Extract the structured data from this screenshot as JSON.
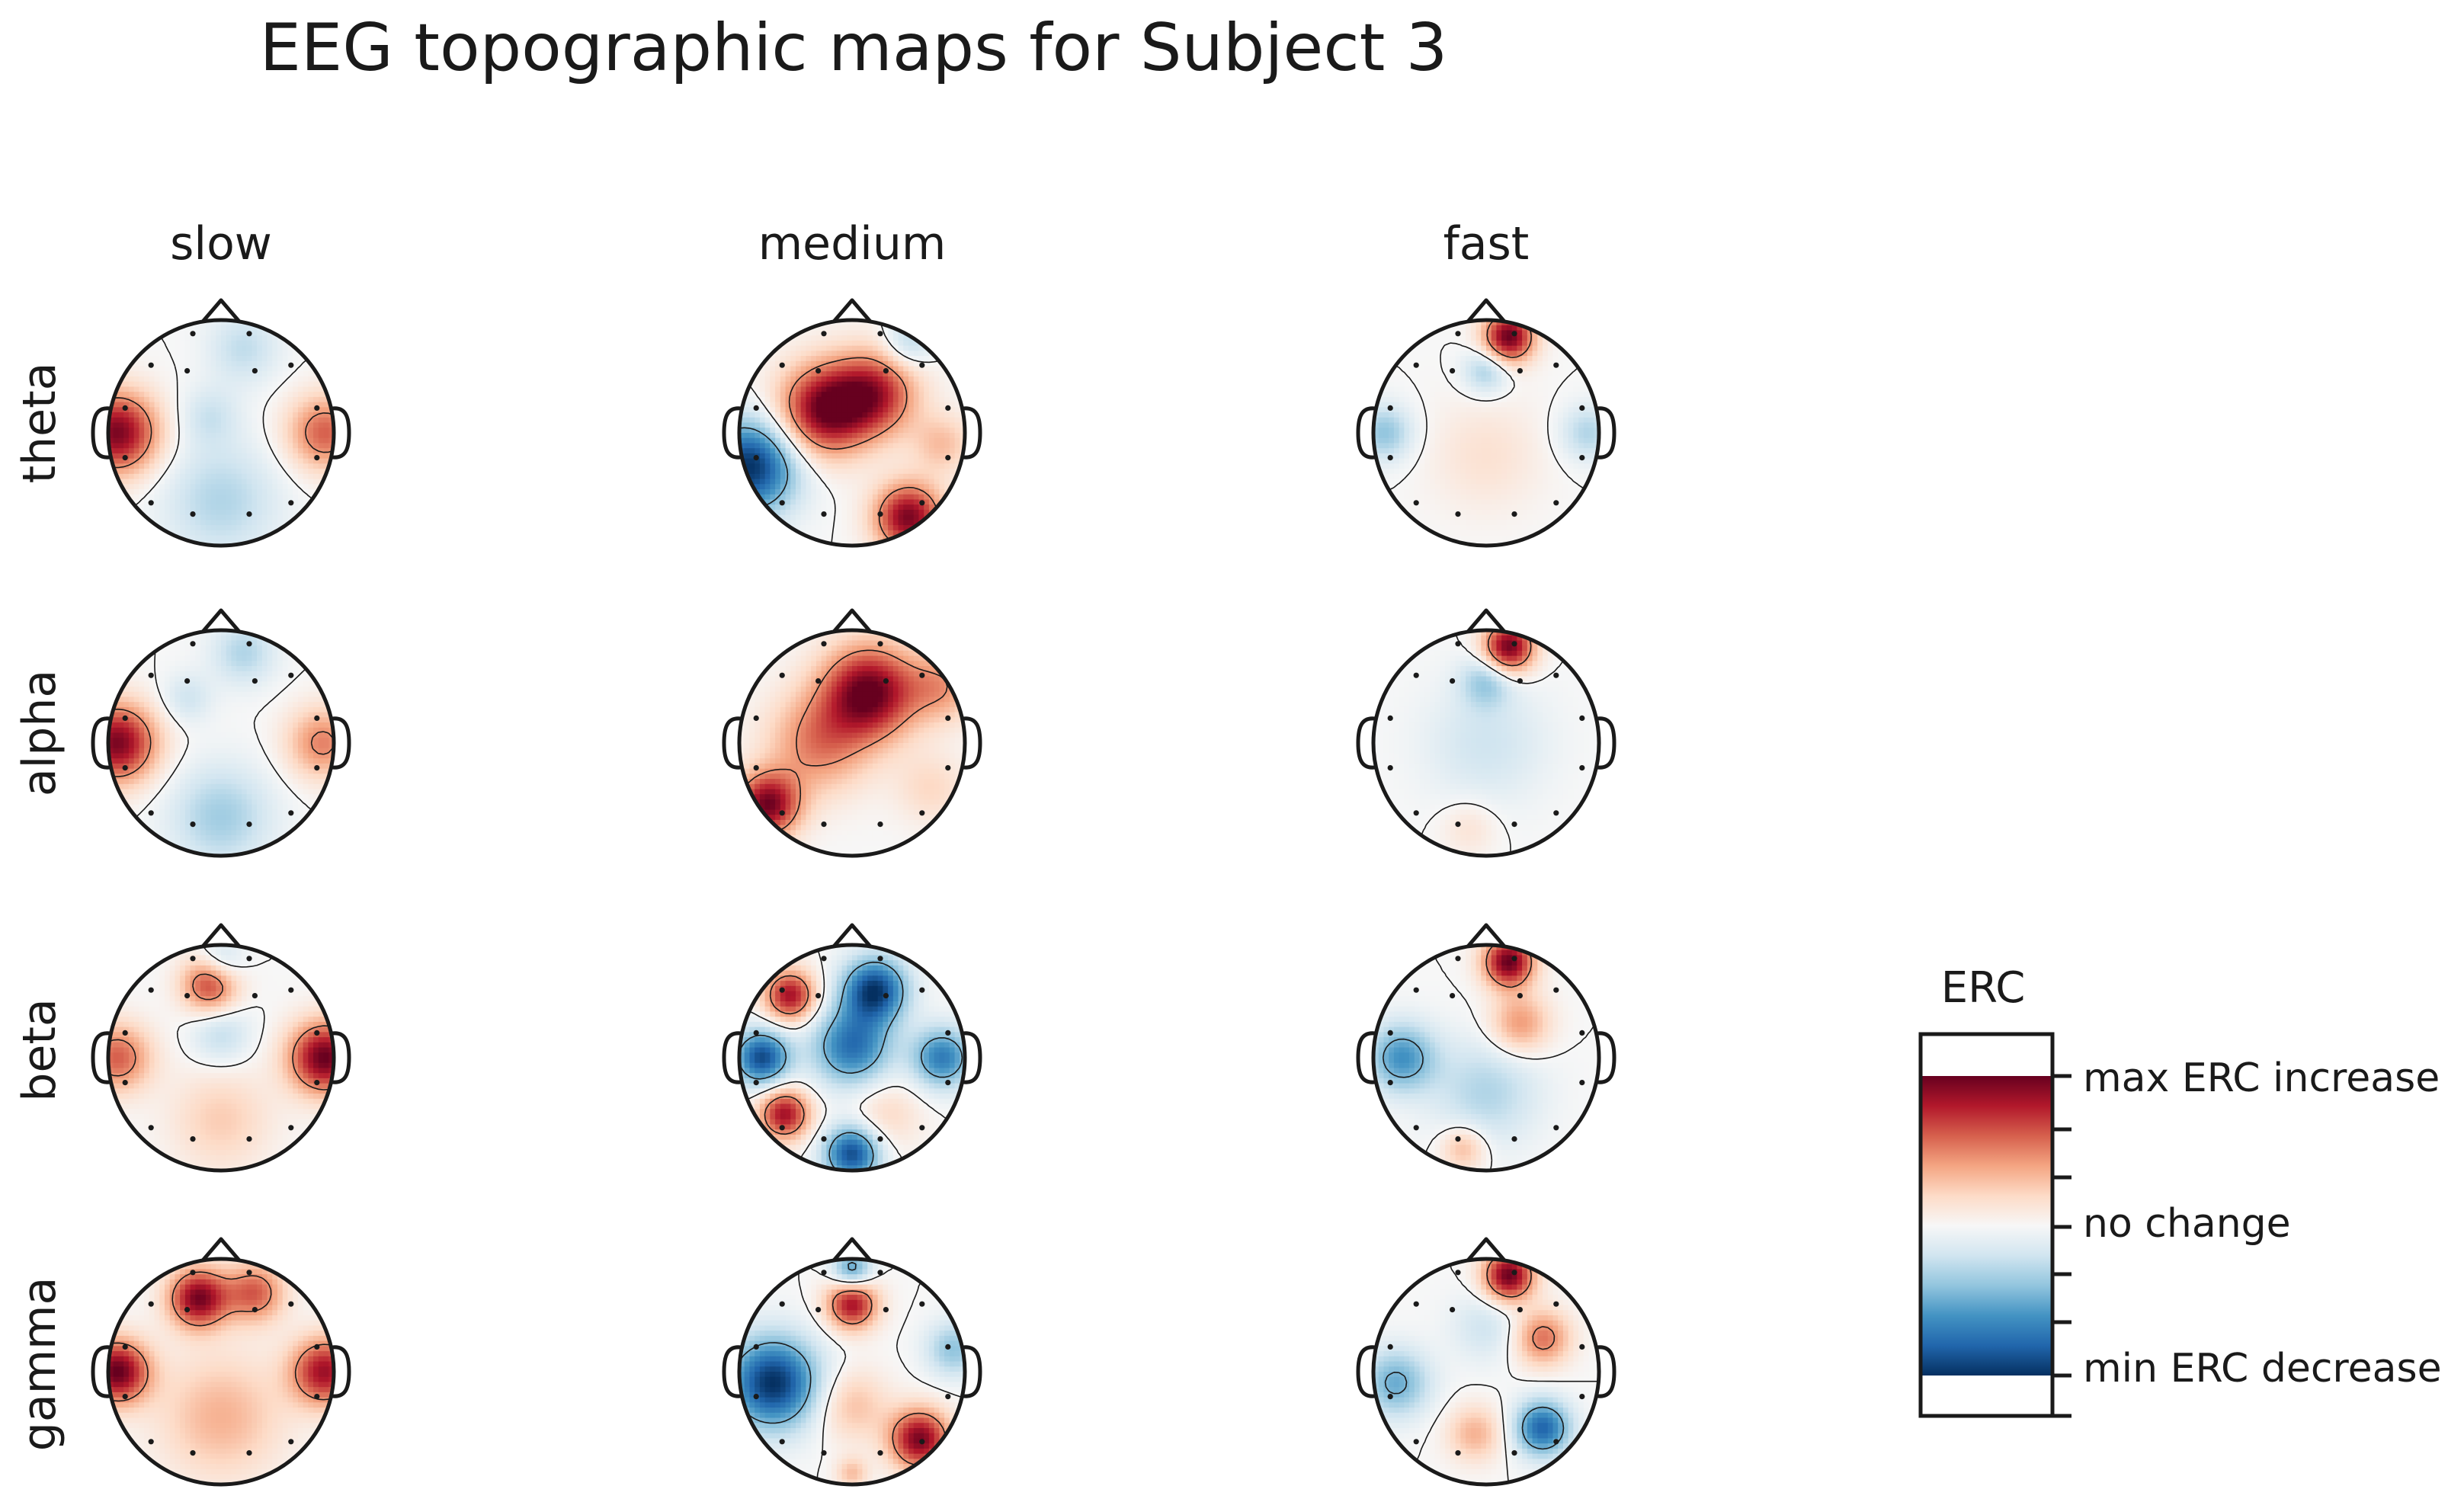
{
  "title": "EEG topographic maps for Subject 3",
  "columns": [
    "slow",
    "medium",
    "fast"
  ],
  "rows": [
    "theta",
    "alpha",
    "beta",
    "gamma"
  ],
  "colorbar": {
    "title": "ERC",
    "tick_labels": {
      "max": "max ERC increase",
      "mid": "no change",
      "min": "min ERC decrease"
    },
    "colormap": [
      "#053061",
      "#2166ac",
      "#4393c3",
      "#92c5de",
      "#d1e5f0",
      "#f7f7f7",
      "#fddbc7",
      "#f4a582",
      "#d6604d",
      "#b2182b",
      "#67001f"
    ]
  },
  "colors": {
    "head_outline": "#1a1a1a",
    "contour_line": "#1a1a1a",
    "sensor_dot": "#1a1a1a"
  },
  "maps": [
    [
      [
        [
          -0.92,
          0.0,
          0.95,
          0.13
        ],
        [
          0.92,
          0.0,
          0.6,
          0.11
        ],
        [
          0.0,
          -0.6,
          -0.3,
          0.26
        ],
        [
          0.2,
          0.75,
          -0.25,
          0.1
        ],
        [
          -0.1,
          0.15,
          -0.2,
          0.07
        ]
      ],
      [
        [
          -0.25,
          0.2,
          0.95,
          0.16
        ],
        [
          0.2,
          0.35,
          0.75,
          0.14
        ],
        [
          -0.9,
          -0.3,
          -1.0,
          0.17
        ],
        [
          0.5,
          -0.75,
          0.95,
          0.09
        ],
        [
          0.5,
          0.8,
          -0.3,
          0.05
        ],
        [
          0.8,
          -0.1,
          0.3,
          0.07
        ]
      ],
      [
        [
          0.2,
          0.85,
          1.0,
          0.05
        ],
        [
          -0.9,
          0.0,
          -0.4,
          0.06
        ],
        [
          0.9,
          0.0,
          -0.3,
          0.06
        ],
        [
          0.0,
          -0.2,
          0.15,
          0.25
        ],
        [
          0.0,
          0.55,
          -0.35,
          0.04
        ]
      ]
    ],
    [
      [
        [
          -0.92,
          0.0,
          0.95,
          0.12
        ],
        [
          0.9,
          0.0,
          0.5,
          0.1
        ],
        [
          0.0,
          -0.65,
          -0.35,
          0.2
        ],
        [
          0.2,
          0.8,
          -0.3,
          0.08
        ],
        [
          -0.3,
          0.4,
          -0.2,
          0.05
        ]
      ],
      [
        [
          0.15,
          0.45,
          1.0,
          0.17
        ],
        [
          -0.3,
          0.0,
          0.5,
          0.2
        ],
        [
          -0.75,
          -0.55,
          0.95,
          0.08
        ],
        [
          0.7,
          -0.4,
          0.2,
          0.1
        ],
        [
          0.8,
          0.5,
          0.4,
          0.1
        ]
      ],
      [
        [
          0.2,
          0.85,
          1.0,
          0.05
        ],
        [
          0.0,
          0.55,
          -0.35,
          0.05
        ],
        [
          0.0,
          0.0,
          -0.2,
          0.3
        ],
        [
          -0.15,
          -0.75,
          0.15,
          0.06
        ]
      ]
    ],
    [
      [
        [
          -0.1,
          0.65,
          0.7,
          0.06
        ],
        [
          0.92,
          0.0,
          1.0,
          0.1
        ],
        [
          -0.92,
          0.0,
          0.6,
          0.09
        ],
        [
          0.0,
          0.2,
          -0.25,
          0.07
        ],
        [
          0.0,
          -0.55,
          0.25,
          0.2
        ],
        [
          0.0,
          0.85,
          -0.3,
          0.04
        ]
      ],
      [
        [
          0.2,
          0.6,
          -0.95,
          0.08
        ],
        [
          0.0,
          0.1,
          -0.75,
          0.12
        ],
        [
          -0.8,
          0.0,
          -0.9,
          0.06
        ],
        [
          0.8,
          0.0,
          -0.7,
          0.07
        ],
        [
          0.0,
          -0.85,
          -0.9,
          0.06
        ],
        [
          -0.55,
          0.55,
          0.85,
          0.05
        ],
        [
          -0.6,
          -0.5,
          0.85,
          0.05
        ],
        [
          0.3,
          -0.5,
          0.2,
          0.1
        ]
      ],
      [
        [
          0.2,
          0.85,
          1.0,
          0.05
        ],
        [
          -0.75,
          0.0,
          -0.6,
          0.09
        ],
        [
          0.3,
          0.3,
          0.45,
          0.07
        ],
        [
          0.0,
          -0.3,
          -0.3,
          0.22
        ],
        [
          -0.2,
          -0.8,
          0.35,
          0.04
        ]
      ]
    ],
    [
      [
        [
          -0.2,
          0.65,
          0.95,
          0.07
        ],
        [
          0.3,
          0.7,
          0.6,
          0.07
        ],
        [
          -0.92,
          0.0,
          1.0,
          0.08
        ],
        [
          0.92,
          0.0,
          0.85,
          0.09
        ],
        [
          0.0,
          -0.4,
          0.35,
          0.3
        ]
      ],
      [
        [
          -0.7,
          -0.1,
          -1.0,
          0.16
        ],
        [
          0.0,
          0.6,
          0.85,
          0.05
        ],
        [
          0.6,
          -0.6,
          0.95,
          0.07
        ],
        [
          0.9,
          0.2,
          -0.4,
          0.06
        ],
        [
          0.0,
          0.9,
          -0.6,
          0.03
        ],
        [
          0.0,
          -0.3,
          0.3,
          0.1
        ],
        [
          0.0,
          -0.9,
          0.3,
          0.02
        ]
      ],
      [
        [
          0.2,
          0.85,
          1.0,
          0.05
        ],
        [
          0.5,
          0.3,
          0.55,
          0.06
        ],
        [
          -0.8,
          -0.1,
          -0.5,
          0.09
        ],
        [
          0.5,
          -0.5,
          -0.8,
          0.06
        ],
        [
          -0.1,
          -0.55,
          0.35,
          0.06
        ],
        [
          0.0,
          0.4,
          -0.2,
          0.1
        ]
      ]
    ]
  ]
}
